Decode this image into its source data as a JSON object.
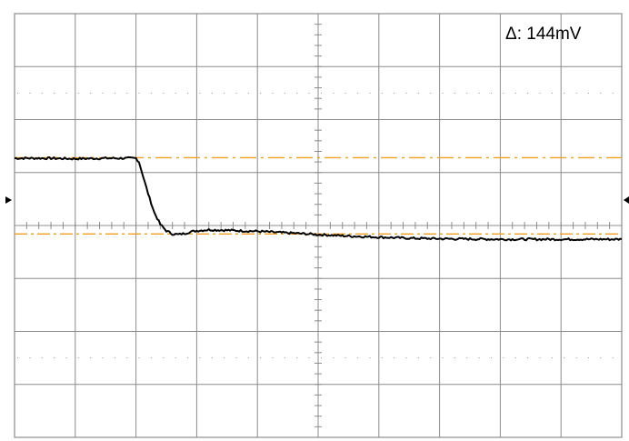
{
  "readout": {
    "delta_label": "Δ: 144mV"
  },
  "colors": {
    "background": "#ffffff",
    "grid": "#8c8c8c",
    "trace": "#000000",
    "cursor": "#f0a020",
    "marker": "#000000"
  },
  "chart_data": {
    "type": "line",
    "title": "",
    "xlabel": "",
    "ylabel": "",
    "grid": true,
    "divisions": {
      "x": 10,
      "y": 8
    },
    "xlim": [
      0,
      10
    ],
    "ylim": [
      -4,
      4
    ],
    "cursors": {
      "orientation": "horizontal",
      "positions": [
        1.28,
        -0.16
      ]
    },
    "series": [
      {
        "x": [
          0,
          0.5,
          1.0,
          1.5,
          2.0,
          2.05,
          2.1,
          2.2,
          2.3,
          2.4,
          2.5,
          2.6,
          2.7,
          2.8,
          2.9,
          3.0,
          3.2,
          3.5,
          4.0,
          4.5,
          5.0,
          5.5,
          6.0,
          6.5,
          7.0,
          8.0,
          9.0,
          10.0
        ],
        "y": [
          1.27,
          1.27,
          1.26,
          1.27,
          1.27,
          1.2,
          1.0,
          0.6,
          0.25,
          0.02,
          -0.1,
          -0.16,
          -0.17,
          -0.15,
          -0.12,
          -0.1,
          -0.08,
          -0.09,
          -0.11,
          -0.14,
          -0.17,
          -0.2,
          -0.22,
          -0.24,
          -0.25,
          -0.26,
          -0.26,
          -0.26
        ]
      }
    ],
    "markers": {
      "left_level": 0.48,
      "right_level": 0.48
    }
  }
}
